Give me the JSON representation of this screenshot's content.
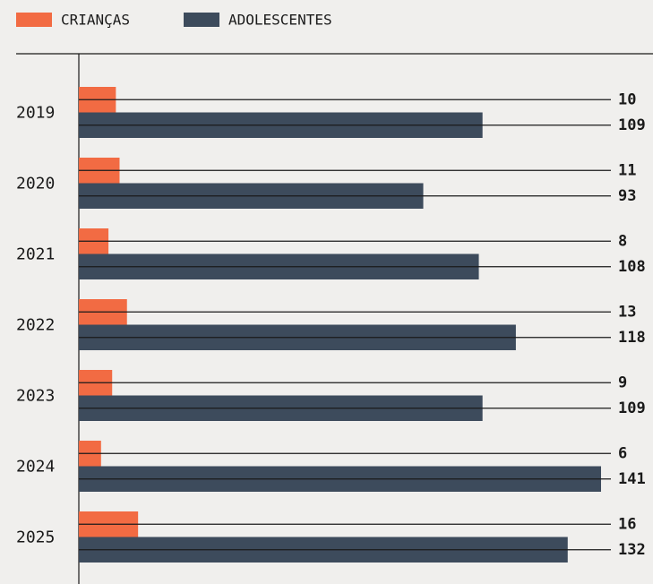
{
  "chart_data": {
    "type": "bar",
    "orientation": "horizontal",
    "categories": [
      "2019",
      "2020",
      "2021",
      "2022",
      "2023",
      "2024",
      "2025"
    ],
    "series": [
      {
        "name": "CRIANÇAS",
        "color": "#f26b43",
        "values": [
          10,
          11,
          8,
          13,
          9,
          6,
          16
        ]
      },
      {
        "name": "ADOLESCENTES",
        "color": "#3d4b5c",
        "values": [
          109,
          93,
          108,
          118,
          109,
          141,
          132
        ]
      }
    ]
  }
}
